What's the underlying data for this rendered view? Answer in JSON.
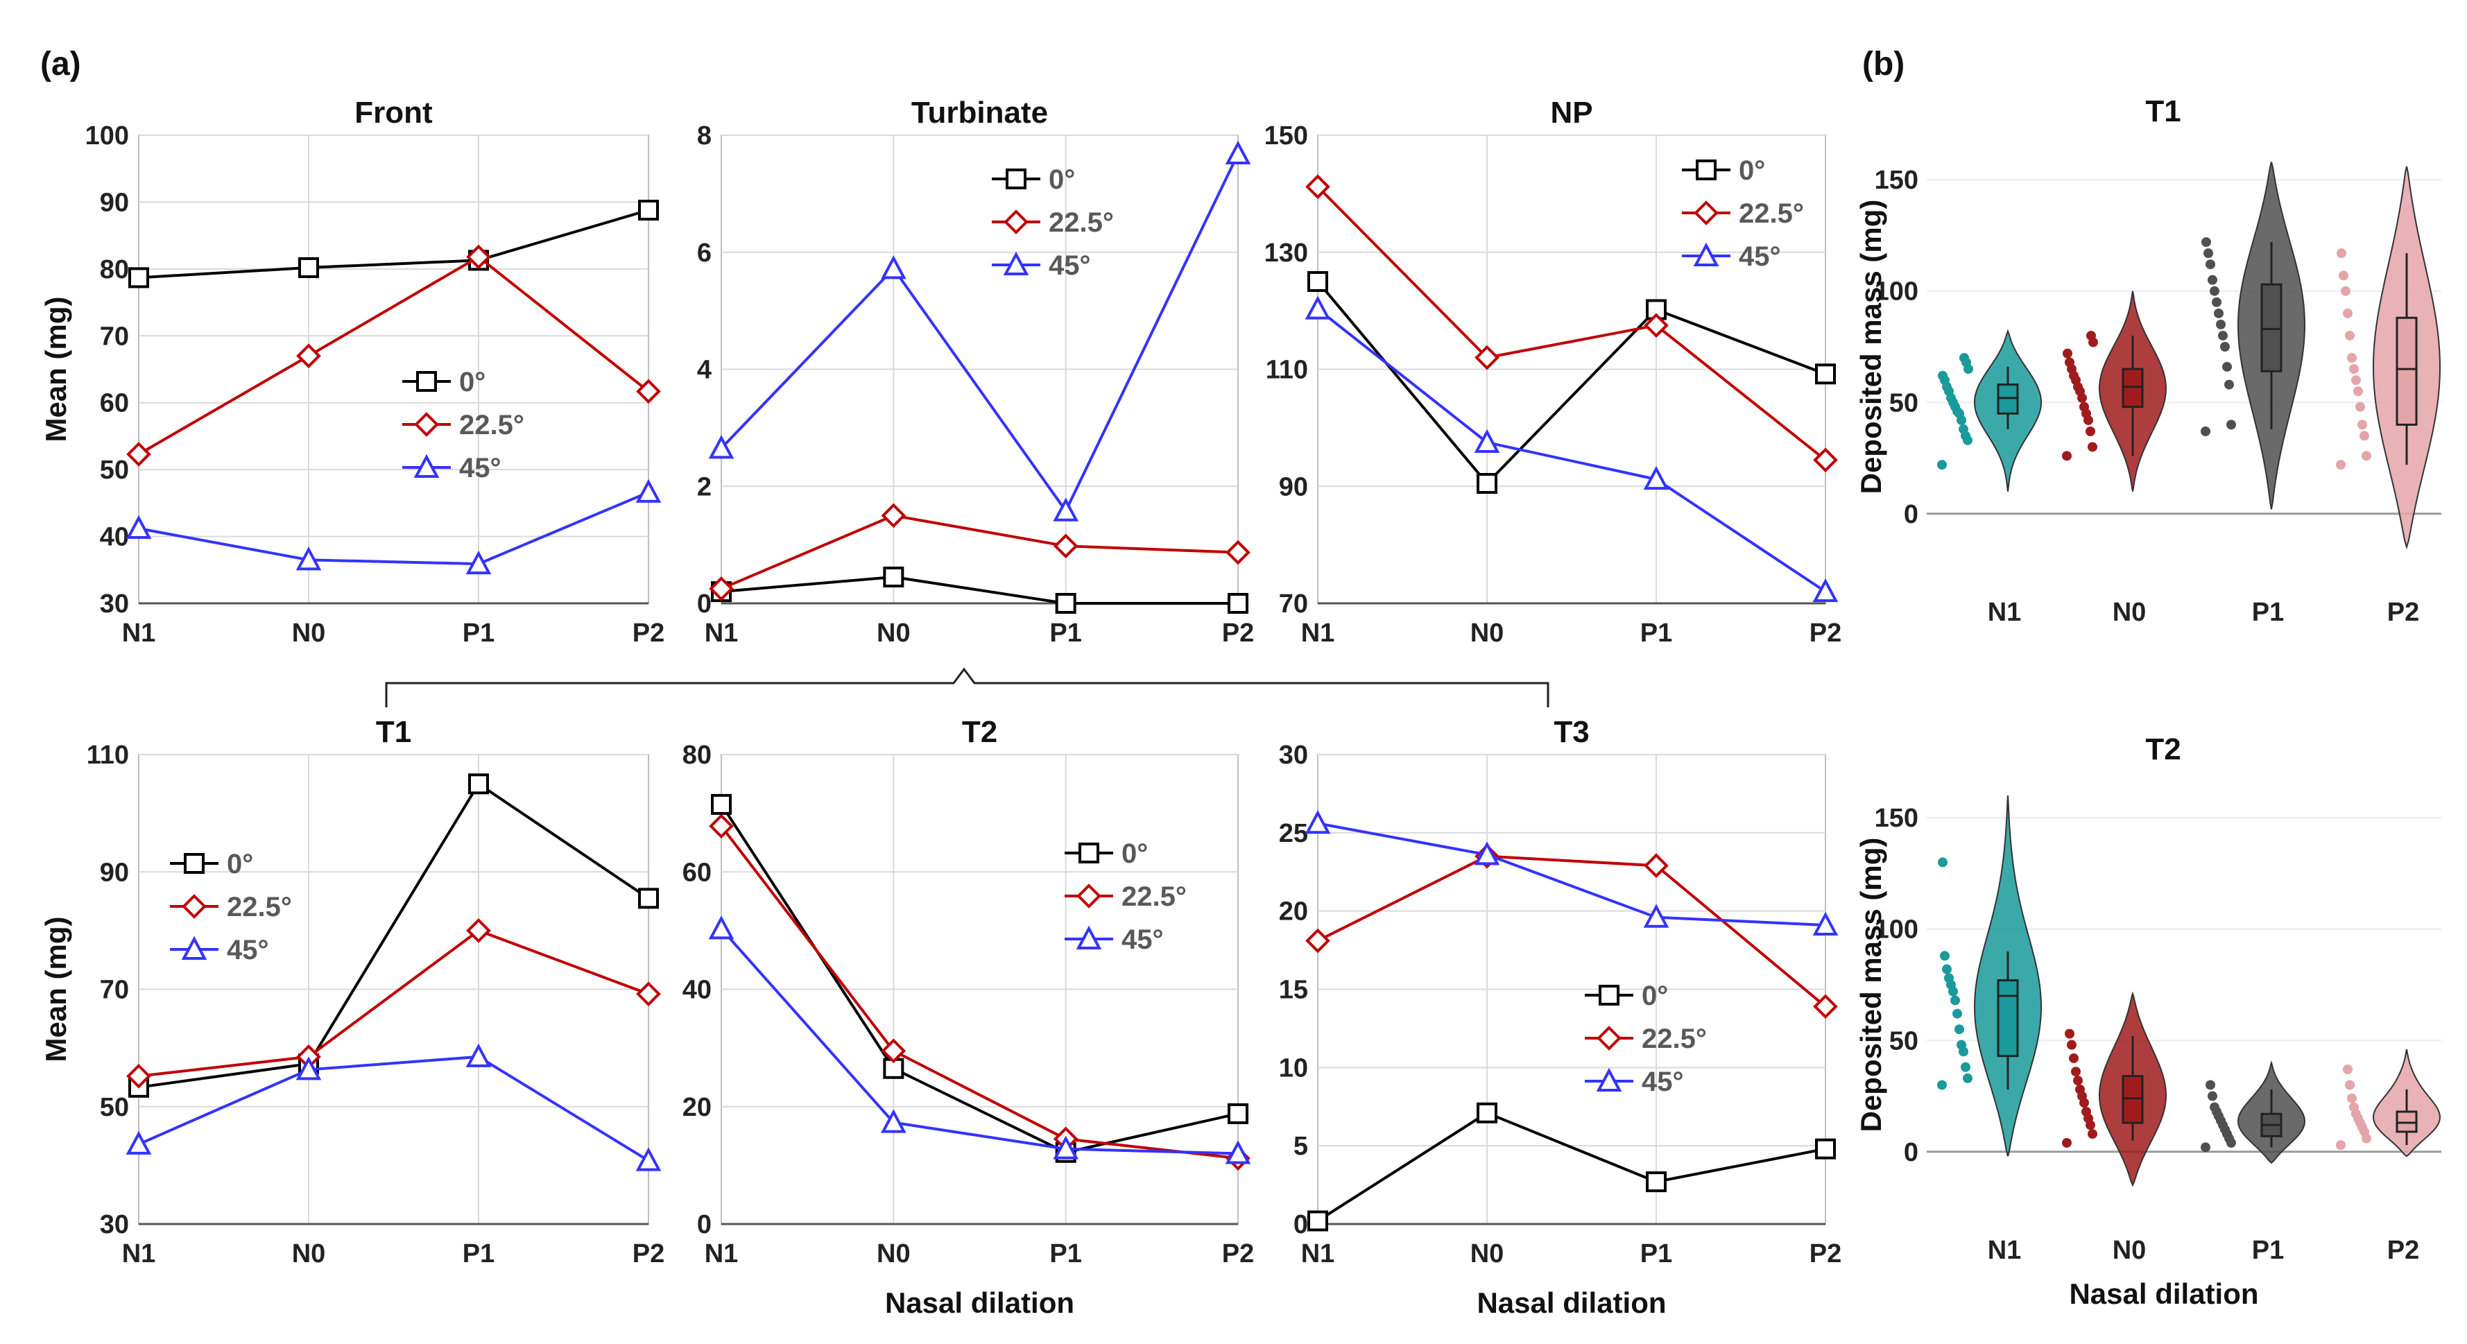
{
  "figure": {
    "panel_labels": [
      "(a)",
      "(b)"
    ],
    "legend_entries": [
      "0°",
      "22.5°",
      "45°"
    ],
    "colors": {
      "0": "#000000",
      "22.5": "#c00000",
      "45": "#3333ff"
    }
  },
  "chart_data": [
    {
      "id": "front",
      "type": "line",
      "title": "Front",
      "categories": [
        "N1",
        "N0",
        "P1",
        "P2"
      ],
      "ylim": [
        30,
        100
      ],
      "yticks": [
        30,
        40,
        50,
        60,
        70,
        80,
        90,
        100
      ],
      "ylabel": "Mean (mg)",
      "xlabel": "",
      "series": [
        {
          "name": "0°",
          "values": [
            78.7,
            80.2,
            81.3,
            88.8
          ]
        },
        {
          "name": "22.5°",
          "values": [
            52.3,
            67.0,
            81.8,
            61.7
          ]
        },
        {
          "name": "45°",
          "values": [
            41.2,
            36.5,
            35.9,
            46.6
          ]
        }
      ]
    },
    {
      "id": "turbinate",
      "type": "line",
      "title": "Turbinate",
      "categories": [
        "N1",
        "N0",
        "P1",
        "P2"
      ],
      "ylim": [
        0,
        8
      ],
      "yticks": [
        0,
        2,
        4,
        6,
        8
      ],
      "ylabel": "",
      "xlabel": "",
      "series": [
        {
          "name": "0°",
          "values": [
            0.2,
            0.45,
            0.0,
            0.0
          ]
        },
        {
          "name": "22.5°",
          "values": [
            0.25,
            1.5,
            0.98,
            0.87
          ]
        },
        {
          "name": "45°",
          "values": [
            2.65,
            5.72,
            1.58,
            7.68
          ]
        }
      ]
    },
    {
      "id": "np",
      "type": "line",
      "title": "NP",
      "categories": [
        "N1",
        "N0",
        "P1",
        "P2"
      ],
      "ylim": [
        70,
        150
      ],
      "yticks": [
        70,
        90,
        110,
        130,
        150
      ],
      "ylabel": "",
      "xlabel": "",
      "series": [
        {
          "name": "0°",
          "values": [
            125.0,
            90.5,
            120.2,
            109.2
          ]
        },
        {
          "name": "22.5°",
          "values": [
            141.2,
            112.0,
            117.5,
            94.5
          ]
        },
        {
          "name": "45°",
          "values": [
            120.3,
            97.5,
            91.2,
            72.0
          ]
        }
      ]
    },
    {
      "id": "t1",
      "type": "line",
      "title": "T1",
      "categories": [
        "N1",
        "N0",
        "P1",
        "P2"
      ],
      "ylim": [
        30,
        110
      ],
      "yticks": [
        30,
        50,
        70,
        90,
        110
      ],
      "ylabel": "Mean (mg)",
      "xlabel": "",
      "series": [
        {
          "name": "0°",
          "values": [
            53.3,
            57.3,
            105.0,
            85.5
          ]
        },
        {
          "name": "22.5°",
          "values": [
            55.2,
            58.5,
            80.0,
            69.2
          ]
        },
        {
          "name": "45°",
          "values": [
            43.6,
            56.3,
            58.5,
            40.8
          ]
        }
      ]
    },
    {
      "id": "t2",
      "type": "line",
      "title": "T2",
      "categories": [
        "N1",
        "N0",
        "P1",
        "P2"
      ],
      "ylim": [
        0,
        80
      ],
      "yticks": [
        0,
        20,
        40,
        60,
        80
      ],
      "ylabel": "",
      "xlabel": "Nasal dilation",
      "series": [
        {
          "name": "0°",
          "values": [
            71.5,
            26.5,
            12.2,
            18.8
          ]
        },
        {
          "name": "22.5°",
          "values": [
            67.8,
            29.5,
            14.5,
            11.2
          ]
        },
        {
          "name": "45°",
          "values": [
            50.3,
            17.3,
            12.8,
            12.0
          ]
        }
      ]
    },
    {
      "id": "t3",
      "type": "line",
      "title": "T3",
      "categories": [
        "N1",
        "N0",
        "P1",
        "P2"
      ],
      "ylim": [
        0,
        30
      ],
      "yticks": [
        0,
        5,
        10,
        15,
        20,
        25,
        30
      ],
      "ylabel": "",
      "xlabel": "Nasal dilation",
      "series": [
        {
          "name": "0°",
          "values": [
            0.2,
            7.1,
            2.7,
            4.8
          ]
        },
        {
          "name": "22.5°",
          "values": [
            18.1,
            23.5,
            22.9,
            13.9
          ]
        },
        {
          "name": "45°",
          "values": [
            25.6,
            23.6,
            19.6,
            19.1
          ]
        }
      ]
    },
    {
      "id": "violin_t1",
      "type": "violin",
      "title": "T1",
      "categories": [
        "N1",
        "N0",
        "P1",
        "P2"
      ],
      "ylim": [
        0,
        150
      ],
      "yticks": [
        0,
        50,
        100,
        150
      ],
      "ylabel": "Deposited mass (mg)",
      "xlabel": "",
      "groups": [
        {
          "name": "N1",
          "color": "#1a9a9a",
          "min": 10,
          "max": 82,
          "q1": 45,
          "median": 52,
          "q3": 58,
          "whisker_low": 38,
          "whisker_high": 66,
          "points": [
            22,
            33,
            35,
            38,
            42,
            45,
            46,
            48,
            50,
            52,
            55,
            57,
            60,
            62,
            65,
            68,
            70
          ]
        },
        {
          "name": "N0",
          "color": "#a01c1c",
          "min": 10,
          "max": 100,
          "q1": 48,
          "median": 57,
          "q3": 65,
          "whisker_low": 26,
          "whisker_high": 80,
          "points": [
            26,
            30,
            37,
            42,
            45,
            48,
            52,
            55,
            57,
            60,
            62,
            65,
            68,
            72,
            77,
            80
          ]
        },
        {
          "name": "P1",
          "color": "#505050",
          "min": 2,
          "max": 158,
          "q1": 64,
          "median": 83,
          "q3": 103,
          "whisker_low": 38,
          "whisker_high": 122,
          "points": [
            37,
            40,
            58,
            66,
            75,
            80,
            85,
            90,
            95,
            100,
            105,
            112,
            117,
            122
          ]
        },
        {
          "name": "P2",
          "color": "#e4a5a9",
          "min": -15,
          "max": 156,
          "q1": 40,
          "median": 65,
          "q3": 88,
          "whisker_low": 22,
          "whisker_high": 117,
          "points": [
            22,
            26,
            35,
            40,
            48,
            55,
            60,
            65,
            70,
            80,
            90,
            100,
            107,
            117
          ]
        }
      ]
    },
    {
      "id": "violin_t2",
      "type": "violin",
      "title": "T2",
      "categories": [
        "N1",
        "N0",
        "P1",
        "P2"
      ],
      "ylim": [
        0,
        150
      ],
      "yticks": [
        0,
        50,
        100,
        150
      ],
      "ylabel": "Deposited mass (mg)",
      "xlabel": "Nasal dilation",
      "groups": [
        {
          "name": "N1",
          "color": "#1a9a9a",
          "min": -2,
          "max": 160,
          "q1": 43,
          "median": 70,
          "q3": 77,
          "whisker_low": 28,
          "whisker_high": 90,
          "points": [
            30,
            33,
            38,
            45,
            48,
            55,
            62,
            68,
            72,
            75,
            78,
            82,
            88,
            130
          ]
        },
        {
          "name": "N0",
          "color": "#a01c1c",
          "min": -15,
          "max": 71,
          "q1": 13,
          "median": 24,
          "q3": 34,
          "whisker_low": 5,
          "whisker_high": 52,
          "points": [
            4,
            8,
            12,
            15,
            18,
            22,
            25,
            28,
            32,
            36,
            42,
            48,
            53
          ]
        },
        {
          "name": "P1",
          "color": "#505050",
          "min": -5,
          "max": 40,
          "q1": 7,
          "median": 12,
          "q3": 17,
          "whisker_low": 2,
          "whisker_high": 28,
          "points": [
            2,
            4,
            6,
            8,
            10,
            12,
            14,
            16,
            18,
            20,
            25,
            30
          ]
        },
        {
          "name": "P2",
          "color": "#e4a5a9",
          "min": -2,
          "max": 46,
          "q1": 9,
          "median": 13,
          "q3": 18,
          "whisker_low": 3,
          "whisker_high": 28,
          "points": [
            3,
            6,
            9,
            11,
            13,
            15,
            17,
            20,
            24,
            30,
            37
          ]
        }
      ]
    }
  ]
}
